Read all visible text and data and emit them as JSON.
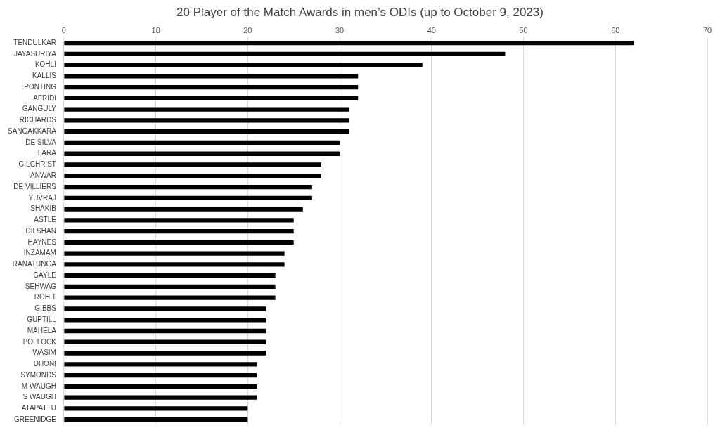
{
  "chart_data": {
    "type": "bar",
    "orientation": "horizontal",
    "title": "20 Player of the Match Awards in men’s ODIs (up to October 9, 2023)",
    "categories": [
      "TENDULKAR",
      "JAYASURIYA",
      "KOHLI",
      "KALLIS",
      "PONTING",
      "AFRIDI",
      "GANGULY",
      "RICHARDS",
      "SANGAKKARA",
      "DE SILVA",
      "LARA",
      "GILCHRIST",
      "ANWAR",
      "DE VILLIERS",
      "YUVRAJ",
      "SHAKIB",
      "ASTLE",
      "DILSHAN",
      "HAYNES",
      "INZAMAM",
      "RANATUNGA",
      "GAYLE",
      "SEHWAG",
      "ROHIT",
      "GIBBS",
      "GUPTILL",
      "MAHELA",
      "POLLOCK",
      "WASIM",
      "DHONI",
      "SYMONDS",
      "M WAUGH",
      "S WAUGH",
      "ATAPATTU",
      "GREENIDGE"
    ],
    "values": [
      62,
      48,
      39,
      32,
      32,
      32,
      31,
      31,
      31,
      30,
      30,
      28,
      28,
      27,
      27,
      26,
      25,
      25,
      25,
      24,
      24,
      23,
      23,
      23,
      22,
      22,
      22,
      22,
      22,
      21,
      21,
      21,
      21,
      20,
      20
    ],
    "color": "#000000",
    "xlim": [
      0,
      70
    ],
    "xticks": [
      0,
      10,
      20,
      30,
      40,
      50,
      60,
      70
    ],
    "grid": "x",
    "legend": false
  }
}
